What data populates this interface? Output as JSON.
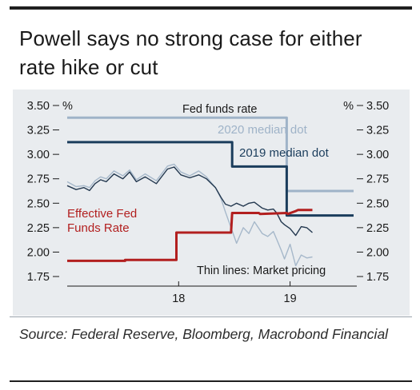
{
  "title": "Powell says no strong case for either rate hike or cut",
  "source": "Source: Federal Reserve, Bloomberg, Macrobond Financial",
  "colors": {
    "panel": "#e9ecef",
    "fed_funds_rate": "#1b3d5c",
    "dot_2020": "#9fb3c8",
    "dot_2019": "#1b3d5c",
    "effective": "#b21f1f",
    "market_dark": "#23384f",
    "market_light": "#a6b8ca"
  },
  "chart_data": {
    "type": "line",
    "title": "Powell says no strong case for either rate hike or cut",
    "xlabel": "",
    "ylabel": "%",
    "ylabel_right": "%",
    "ylim": [
      1.75,
      3.5
    ],
    "yticks": [
      "3.50",
      "3.25",
      "3.00",
      "2.75",
      "2.50",
      "2.25",
      "2.00",
      "1.75"
    ],
    "ytick_values": [
      3.5,
      3.25,
      3.0,
      2.75,
      2.5,
      2.25,
      2.0,
      1.75
    ],
    "xlim": [
      2017.0,
      2019.57
    ],
    "xticks": [
      "18",
      "19"
    ],
    "xtick_values": [
      2018.0,
      2019.0
    ],
    "grid": false,
    "labels": {
      "fed_funds_rate": "Fed funds rate",
      "dot_2020": "2020 median dot",
      "dot_2019": "2019 median dot",
      "effective": "Effective Fed Funds Rate",
      "effective_line1": "Effective Fed",
      "effective_line2": "Funds Rate",
      "market": "Thin lines: Market pricing"
    },
    "series": [
      {
        "name": "2020 median dot",
        "x": [
          2017.0,
          2018.48,
          2018.48,
          2018.97,
          2018.97,
          2019.57
        ],
        "y": [
          3.375,
          3.375,
          3.375,
          3.375,
          2.625,
          2.625
        ]
      },
      {
        "name": "2019 median dot",
        "x": [
          2017.0,
          2018.48,
          2018.48,
          2018.97,
          2018.97,
          2019.57
        ],
        "y": [
          3.125,
          3.125,
          2.875,
          2.875,
          2.375,
          2.375
        ]
      },
      {
        "name": "Effective Fed Funds Rate",
        "x": [
          2017.0,
          2017.52,
          2017.52,
          2017.98,
          2017.98,
          2018.21,
          2018.21,
          2018.47,
          2018.48,
          2018.72,
          2018.73,
          2018.97,
          2018.98,
          2019.05,
          2019.07,
          2019.2
        ],
        "y": [
          1.91,
          1.91,
          1.92,
          1.92,
          2.2,
          2.2,
          2.2,
          2.2,
          2.4,
          2.4,
          2.39,
          2.4,
          2.39,
          2.42,
          2.43,
          2.43
        ]
      },
      {
        "name": "Market pricing (2019 dot)",
        "x": [
          2017.0,
          2017.08,
          2017.15,
          2017.2,
          2017.25,
          2017.3,
          2017.35,
          2017.42,
          2017.5,
          2017.56,
          2017.62,
          2017.7,
          2017.8,
          2017.9,
          2017.96,
          2018.02,
          2018.1,
          2018.18,
          2018.25,
          2018.33,
          2018.38,
          2018.42,
          2018.47,
          2018.52,
          2018.58,
          2018.63,
          2018.68,
          2018.75,
          2018.8,
          2018.85,
          2018.88,
          2018.92,
          2018.95,
          2019.0,
          2019.05,
          2019.1,
          2019.15,
          2019.2
        ],
        "y": [
          2.68,
          2.64,
          2.66,
          2.63,
          2.7,
          2.74,
          2.72,
          2.8,
          2.75,
          2.82,
          2.72,
          2.77,
          2.7,
          2.85,
          2.87,
          2.79,
          2.76,
          2.79,
          2.75,
          2.66,
          2.56,
          2.49,
          2.47,
          2.5,
          2.47,
          2.5,
          2.51,
          2.45,
          2.43,
          2.44,
          2.4,
          2.31,
          2.28,
          2.24,
          2.17,
          2.26,
          2.25,
          2.2
        ]
      },
      {
        "name": "Market pricing (2020 dot)",
        "x": [
          2017.0,
          2017.08,
          2017.15,
          2017.2,
          2017.25,
          2017.3,
          2017.35,
          2017.42,
          2017.5,
          2017.56,
          2017.62,
          2017.7,
          2017.8,
          2017.9,
          2017.96,
          2018.02,
          2018.1,
          2018.18,
          2018.25,
          2018.33,
          2018.38,
          2018.42,
          2018.47,
          2018.52,
          2018.58,
          2018.63,
          2018.68,
          2018.75,
          2018.8,
          2018.85,
          2018.88,
          2018.92,
          2018.95,
          2019.0,
          2019.05,
          2019.1,
          2019.15,
          2019.2
        ],
        "y": [
          2.72,
          2.67,
          2.68,
          2.66,
          2.73,
          2.77,
          2.75,
          2.83,
          2.78,
          2.84,
          2.74,
          2.8,
          2.73,
          2.88,
          2.9,
          2.82,
          2.78,
          2.83,
          2.77,
          2.66,
          2.55,
          2.41,
          2.25,
          2.09,
          2.25,
          2.19,
          2.31,
          2.19,
          2.16,
          2.21,
          2.13,
          2.02,
          1.93,
          2.08,
          1.86,
          1.97,
          1.94,
          1.95
        ]
      }
    ]
  }
}
